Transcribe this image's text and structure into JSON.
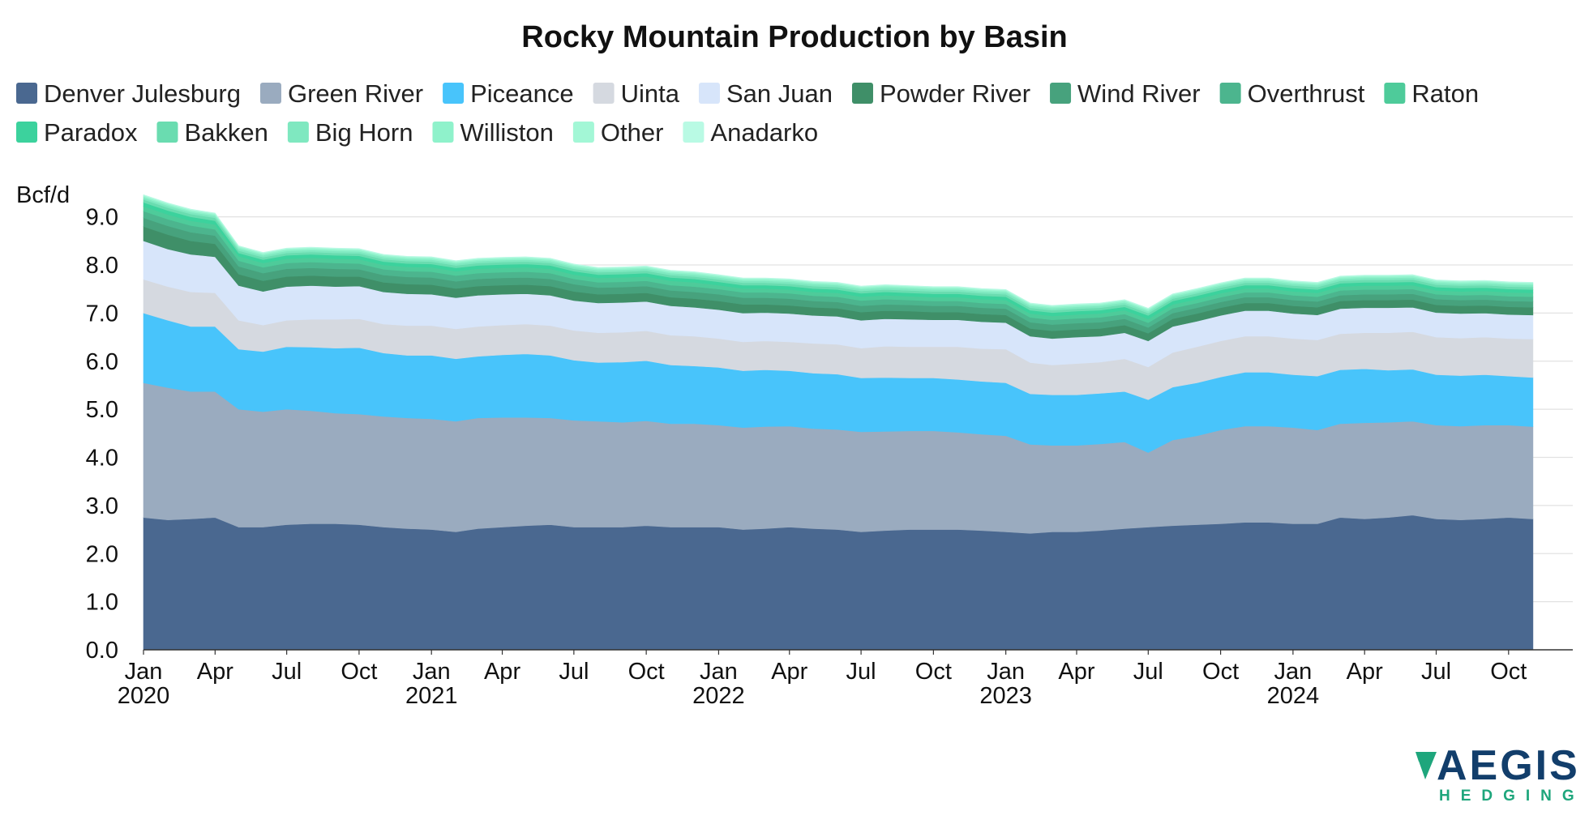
{
  "chart_data": {
    "type": "area",
    "stacked": true,
    "title": "Rocky Mountain Production by Basin",
    "unit_label": "Bcf/d",
    "ylim": [
      0,
      9.6
    ],
    "yticks": [
      "0.0",
      "1.0",
      "2.0",
      "3.0",
      "4.0",
      "5.0",
      "6.0",
      "7.0",
      "8.0",
      "9.0"
    ],
    "xlim": [
      "2020-01-01",
      "2024-12-01"
    ],
    "xticks": [
      {
        "date": "2020-01-01",
        "label": "Jan",
        "year": "2020"
      },
      {
        "date": "2020-04-01",
        "label": "Apr",
        "year": ""
      },
      {
        "date": "2020-07-01",
        "label": "Jul",
        "year": ""
      },
      {
        "date": "2020-10-01",
        "label": "Oct",
        "year": ""
      },
      {
        "date": "2021-01-01",
        "label": "Jan",
        "year": "2021"
      },
      {
        "date": "2021-04-01",
        "label": "Apr",
        "year": ""
      },
      {
        "date": "2021-07-01",
        "label": "Jul",
        "year": ""
      },
      {
        "date": "2021-10-01",
        "label": "Oct",
        "year": ""
      },
      {
        "date": "2022-01-01",
        "label": "Jan",
        "year": "2022"
      },
      {
        "date": "2022-04-01",
        "label": "Apr",
        "year": ""
      },
      {
        "date": "2022-07-01",
        "label": "Jul",
        "year": ""
      },
      {
        "date": "2022-10-01",
        "label": "Oct",
        "year": ""
      },
      {
        "date": "2023-01-01",
        "label": "Jan",
        "year": "2023"
      },
      {
        "date": "2023-04-01",
        "label": "Apr",
        "year": ""
      },
      {
        "date": "2023-07-01",
        "label": "Jul",
        "year": ""
      },
      {
        "date": "2023-10-01",
        "label": "Oct",
        "year": ""
      },
      {
        "date": "2024-01-01",
        "label": "Jan",
        "year": "2024"
      },
      {
        "date": "2024-04-01",
        "label": "Apr",
        "year": ""
      },
      {
        "date": "2024-07-01",
        "label": "Jul",
        "year": ""
      },
      {
        "date": "2024-10-01",
        "label": "Oct",
        "year": ""
      }
    ],
    "grid": true,
    "legend_position": "top",
    "x": [
      "2020-01-01",
      "2020-02-01",
      "2020-03-01",
      "2020-04-01",
      "2020-05-01",
      "2020-06-01",
      "2020-07-01",
      "2020-08-01",
      "2020-09-01",
      "2020-10-01",
      "2020-11-01",
      "2020-12-01",
      "2021-01-01",
      "2021-02-01",
      "2021-03-01",
      "2021-04-01",
      "2021-05-01",
      "2021-06-01",
      "2021-07-01",
      "2021-08-01",
      "2021-09-01",
      "2021-10-01",
      "2021-11-01",
      "2021-12-01",
      "2022-01-01",
      "2022-02-01",
      "2022-03-01",
      "2022-04-01",
      "2022-05-01",
      "2022-06-01",
      "2022-07-01",
      "2022-08-01",
      "2022-09-01",
      "2022-10-01",
      "2022-11-01",
      "2022-12-01",
      "2023-01-01",
      "2023-02-01",
      "2023-03-01",
      "2023-04-01",
      "2023-05-01",
      "2023-06-01",
      "2023-07-01",
      "2023-08-01",
      "2023-09-01",
      "2023-10-01",
      "2023-11-01",
      "2023-12-01",
      "2024-01-01",
      "2024-02-01",
      "2024-03-01",
      "2024-04-01",
      "2024-05-01",
      "2024-06-01",
      "2024-07-01",
      "2024-08-01",
      "2024-09-01",
      "2024-10-01",
      "2024-11-01"
    ],
    "series": [
      {
        "name": "Denver Julesburg",
        "color": "#4a6890",
        "values": [
          2.75,
          2.7,
          2.72,
          2.75,
          2.55,
          2.55,
          2.6,
          2.62,
          2.62,
          2.6,
          2.55,
          2.52,
          2.5,
          2.45,
          2.52,
          2.55,
          2.58,
          2.6,
          2.55,
          2.55,
          2.55,
          2.58,
          2.55,
          2.55,
          2.55,
          2.5,
          2.52,
          2.55,
          2.52,
          2.5,
          2.45,
          2.48,
          2.5,
          2.5,
          2.5,
          2.48,
          2.45,
          2.42,
          2.45,
          2.45,
          2.48,
          2.52,
          2.55,
          2.58,
          2.6,
          2.62,
          2.65,
          2.65,
          2.62,
          2.62,
          2.75,
          2.72,
          2.75,
          2.8,
          2.72,
          2.7,
          2.72,
          2.75,
          2.72
        ]
      },
      {
        "name": "Green River",
        "color": "#9aabbf",
        "values": [
          2.8,
          2.75,
          2.65,
          2.62,
          2.45,
          2.4,
          2.4,
          2.35,
          2.3,
          2.3,
          2.3,
          2.3,
          2.3,
          2.3,
          2.3,
          2.28,
          2.25,
          2.22,
          2.22,
          2.2,
          2.18,
          2.18,
          2.15,
          2.15,
          2.12,
          2.12,
          2.12,
          2.1,
          2.08,
          2.08,
          2.08,
          2.06,
          2.05,
          2.05,
          2.02,
          2.0,
          2.0,
          1.85,
          1.8,
          1.8,
          1.8,
          1.8,
          1.55,
          1.78,
          1.85,
          1.95,
          2.0,
          2.0,
          2.0,
          1.95,
          1.95,
          2.0,
          1.98,
          1.95,
          1.95,
          1.95,
          1.95,
          1.92,
          1.92
        ]
      },
      {
        "name": "Piceance",
        "color": "#48c4fb",
        "values": [
          1.45,
          1.4,
          1.35,
          1.35,
          1.25,
          1.25,
          1.3,
          1.32,
          1.35,
          1.38,
          1.32,
          1.3,
          1.32,
          1.3,
          1.28,
          1.3,
          1.32,
          1.3,
          1.25,
          1.22,
          1.25,
          1.25,
          1.22,
          1.2,
          1.2,
          1.18,
          1.18,
          1.15,
          1.15,
          1.15,
          1.12,
          1.12,
          1.1,
          1.1,
          1.1,
          1.1,
          1.1,
          1.05,
          1.05,
          1.05,
          1.05,
          1.05,
          1.1,
          1.1,
          1.1,
          1.1,
          1.12,
          1.12,
          1.1,
          1.12,
          1.12,
          1.12,
          1.08,
          1.08,
          1.05,
          1.05,
          1.05,
          1.02,
          1.02
        ]
      },
      {
        "name": "Uinta",
        "color": "#d5d9e0",
        "values": [
          0.7,
          0.7,
          0.72,
          0.7,
          0.6,
          0.55,
          0.55,
          0.58,
          0.6,
          0.6,
          0.6,
          0.62,
          0.62,
          0.62,
          0.62,
          0.62,
          0.62,
          0.62,
          0.62,
          0.62,
          0.62,
          0.62,
          0.62,
          0.62,
          0.6,
          0.6,
          0.6,
          0.6,
          0.62,
          0.62,
          0.62,
          0.65,
          0.65,
          0.65,
          0.68,
          0.68,
          0.7,
          0.65,
          0.62,
          0.65,
          0.65,
          0.68,
          0.68,
          0.72,
          0.75,
          0.75,
          0.75,
          0.75,
          0.75,
          0.75,
          0.75,
          0.75,
          0.78,
          0.78,
          0.78,
          0.78,
          0.78,
          0.78,
          0.8
        ]
      },
      {
        "name": "San Juan",
        "color": "#d7e5fa",
        "values": [
          0.8,
          0.78,
          0.78,
          0.75,
          0.72,
          0.7,
          0.7,
          0.7,
          0.68,
          0.68,
          0.67,
          0.66,
          0.65,
          0.65,
          0.65,
          0.64,
          0.63,
          0.63,
          0.62,
          0.62,
          0.62,
          0.61,
          0.61,
          0.6,
          0.6,
          0.6,
          0.59,
          0.59,
          0.58,
          0.58,
          0.58,
          0.57,
          0.57,
          0.56,
          0.56,
          0.56,
          0.55,
          0.55,
          0.55,
          0.55,
          0.54,
          0.54,
          0.54,
          0.54,
          0.53,
          0.53,
          0.53,
          0.53,
          0.52,
          0.52,
          0.52,
          0.52,
          0.52,
          0.51,
          0.51,
          0.51,
          0.5,
          0.5,
          0.5
        ]
      },
      {
        "name": "Powder River",
        "color": "#3f8f68",
        "values": [
          0.3,
          0.3,
          0.28,
          0.27,
          0.24,
          0.22,
          0.21,
          0.21,
          0.21,
          0.2,
          0.2,
          0.2,
          0.2,
          0.19,
          0.19,
          0.19,
          0.19,
          0.19,
          0.19,
          0.18,
          0.18,
          0.18,
          0.18,
          0.18,
          0.18,
          0.18,
          0.17,
          0.17,
          0.17,
          0.17,
          0.17,
          0.17,
          0.17,
          0.16,
          0.16,
          0.16,
          0.16,
          0.16,
          0.16,
          0.16,
          0.16,
          0.16,
          0.16,
          0.16,
          0.16,
          0.16,
          0.16,
          0.16,
          0.16,
          0.16,
          0.16,
          0.16,
          0.16,
          0.16,
          0.16,
          0.16,
          0.16,
          0.16,
          0.16
        ]
      },
      {
        "name": "Wind River",
        "color": "#47a27d",
        "values": [
          0.18,
          0.18,
          0.18,
          0.17,
          0.16,
          0.16,
          0.16,
          0.16,
          0.16,
          0.15,
          0.15,
          0.15,
          0.15,
          0.15,
          0.15,
          0.15,
          0.15,
          0.15,
          0.15,
          0.14,
          0.14,
          0.14,
          0.14,
          0.14,
          0.14,
          0.14,
          0.14,
          0.14,
          0.13,
          0.13,
          0.13,
          0.13,
          0.13,
          0.13,
          0.13,
          0.13,
          0.13,
          0.13,
          0.13,
          0.13,
          0.13,
          0.13,
          0.12,
          0.12,
          0.12,
          0.12,
          0.12,
          0.12,
          0.12,
          0.12,
          0.12,
          0.12,
          0.12,
          0.12,
          0.12,
          0.12,
          0.12,
          0.12,
          0.12
        ]
      },
      {
        "name": "Overthrust",
        "color": "#4cb58e",
        "values": [
          0.14,
          0.14,
          0.14,
          0.13,
          0.12,
          0.12,
          0.12,
          0.12,
          0.12,
          0.12,
          0.12,
          0.12,
          0.12,
          0.12,
          0.12,
          0.12,
          0.12,
          0.12,
          0.11,
          0.11,
          0.11,
          0.11,
          0.11,
          0.11,
          0.11,
          0.11,
          0.11,
          0.11,
          0.11,
          0.11,
          0.11,
          0.11,
          0.1,
          0.1,
          0.1,
          0.1,
          0.1,
          0.1,
          0.1,
          0.1,
          0.1,
          0.1,
          0.1,
          0.1,
          0.1,
          0.1,
          0.1,
          0.1,
          0.1,
          0.1,
          0.1,
          0.1,
          0.1,
          0.1,
          0.1,
          0.1,
          0.1,
          0.1,
          0.1
        ]
      },
      {
        "name": "Raton",
        "color": "#4ecb9a",
        "values": [
          0.1,
          0.1,
          0.1,
          0.1,
          0.09,
          0.09,
          0.09,
          0.09,
          0.09,
          0.09,
          0.09,
          0.09,
          0.09,
          0.09,
          0.09,
          0.09,
          0.09,
          0.09,
          0.09,
          0.09,
          0.09,
          0.09,
          0.09,
          0.09,
          0.08,
          0.08,
          0.08,
          0.08,
          0.08,
          0.08,
          0.08,
          0.08,
          0.08,
          0.08,
          0.08,
          0.08,
          0.08,
          0.08,
          0.08,
          0.08,
          0.08,
          0.08,
          0.08,
          0.08,
          0.08,
          0.08,
          0.08,
          0.08,
          0.08,
          0.08,
          0.08,
          0.08,
          0.08,
          0.08,
          0.08,
          0.08,
          0.08,
          0.08,
          0.08
        ]
      },
      {
        "name": "Paradox",
        "color": "#3cd29d",
        "values": [
          0.08,
          0.08,
          0.08,
          0.08,
          0.07,
          0.07,
          0.07,
          0.07,
          0.07,
          0.07,
          0.07,
          0.07,
          0.07,
          0.07,
          0.07,
          0.07,
          0.07,
          0.07,
          0.07,
          0.07,
          0.07,
          0.07,
          0.07,
          0.07,
          0.07,
          0.07,
          0.07,
          0.07,
          0.07,
          0.07,
          0.07,
          0.07,
          0.07,
          0.07,
          0.07,
          0.07,
          0.07,
          0.07,
          0.07,
          0.07,
          0.07,
          0.07,
          0.07,
          0.07,
          0.07,
          0.07,
          0.07,
          0.07,
          0.07,
          0.07,
          0.07,
          0.07,
          0.07,
          0.07,
          0.07,
          0.07,
          0.07,
          0.07,
          0.07
        ]
      },
      {
        "name": "Bakken",
        "color": "#6adcb0",
        "values": [
          0.06,
          0.06,
          0.06,
          0.06,
          0.05,
          0.05,
          0.05,
          0.05,
          0.05,
          0.05,
          0.05,
          0.05,
          0.05,
          0.05,
          0.05,
          0.05,
          0.05,
          0.05,
          0.05,
          0.05,
          0.05,
          0.05,
          0.05,
          0.05,
          0.05,
          0.05,
          0.05,
          0.05,
          0.05,
          0.05,
          0.05,
          0.05,
          0.05,
          0.05,
          0.05,
          0.05,
          0.05,
          0.05,
          0.05,
          0.05,
          0.05,
          0.05,
          0.05,
          0.05,
          0.05,
          0.05,
          0.05,
          0.05,
          0.05,
          0.05,
          0.05,
          0.05,
          0.05,
          0.05,
          0.05,
          0.05,
          0.05,
          0.05,
          0.05
        ]
      },
      {
        "name": "Big Horn",
        "color": "#7fe8c0",
        "values": [
          0.04,
          0.04,
          0.04,
          0.04,
          0.04,
          0.04,
          0.04,
          0.04,
          0.04,
          0.04,
          0.04,
          0.04,
          0.04,
          0.04,
          0.04,
          0.04,
          0.04,
          0.04,
          0.04,
          0.04,
          0.04,
          0.04,
          0.04,
          0.04,
          0.04,
          0.04,
          0.04,
          0.04,
          0.04,
          0.04,
          0.04,
          0.04,
          0.04,
          0.04,
          0.04,
          0.04,
          0.04,
          0.04,
          0.04,
          0.04,
          0.04,
          0.04,
          0.04,
          0.04,
          0.04,
          0.04,
          0.04,
          0.04,
          0.04,
          0.04,
          0.04,
          0.04,
          0.04,
          0.04,
          0.04,
          0.04,
          0.04,
          0.04,
          0.04
        ]
      },
      {
        "name": "Williston",
        "color": "#8ff2cb",
        "values": [
          0.03,
          0.03,
          0.03,
          0.03,
          0.03,
          0.03,
          0.03,
          0.03,
          0.03,
          0.03,
          0.03,
          0.03,
          0.03,
          0.03,
          0.03,
          0.03,
          0.03,
          0.03,
          0.03,
          0.03,
          0.03,
          0.03,
          0.03,
          0.03,
          0.03,
          0.03,
          0.03,
          0.03,
          0.03,
          0.03,
          0.03,
          0.03,
          0.03,
          0.03,
          0.03,
          0.03,
          0.03,
          0.03,
          0.03,
          0.03,
          0.03,
          0.03,
          0.03,
          0.03,
          0.03,
          0.03,
          0.03,
          0.03,
          0.03,
          0.03,
          0.03,
          0.03,
          0.03,
          0.03,
          0.03,
          0.03,
          0.03,
          0.03,
          0.03
        ]
      },
      {
        "name": "Other",
        "color": "#a3f7d6",
        "values": [
          0.02,
          0.02,
          0.02,
          0.02,
          0.02,
          0.02,
          0.02,
          0.02,
          0.02,
          0.02,
          0.02,
          0.02,
          0.02,
          0.02,
          0.02,
          0.02,
          0.02,
          0.02,
          0.02,
          0.02,
          0.02,
          0.02,
          0.02,
          0.02,
          0.02,
          0.02,
          0.02,
          0.02,
          0.02,
          0.02,
          0.02,
          0.02,
          0.02,
          0.02,
          0.02,
          0.02,
          0.02,
          0.02,
          0.02,
          0.02,
          0.02,
          0.02,
          0.02,
          0.02,
          0.02,
          0.02,
          0.02,
          0.02,
          0.02,
          0.02,
          0.02,
          0.02,
          0.02,
          0.02,
          0.02,
          0.02,
          0.02,
          0.02,
          0.02
        ]
      },
      {
        "name": "Anadarko",
        "color": "#b9fae4",
        "values": [
          0.01,
          0.01,
          0.01,
          0.01,
          0.01,
          0.01,
          0.01,
          0.01,
          0.01,
          0.01,
          0.01,
          0.01,
          0.01,
          0.01,
          0.01,
          0.01,
          0.01,
          0.01,
          0.01,
          0.01,
          0.01,
          0.01,
          0.01,
          0.01,
          0.01,
          0.01,
          0.01,
          0.01,
          0.01,
          0.01,
          0.01,
          0.01,
          0.01,
          0.01,
          0.01,
          0.01,
          0.01,
          0.01,
          0.01,
          0.01,
          0.01,
          0.01,
          0.01,
          0.01,
          0.01,
          0.01,
          0.01,
          0.01,
          0.01,
          0.01,
          0.01,
          0.01,
          0.01,
          0.01,
          0.01,
          0.01,
          0.01,
          0.01,
          0.01
        ]
      }
    ]
  },
  "logo": {
    "main_text": "AEGIS",
    "sub_text": "HEDGING",
    "primary_color": "#123e6b",
    "accent_color": "#1ea67c"
  }
}
